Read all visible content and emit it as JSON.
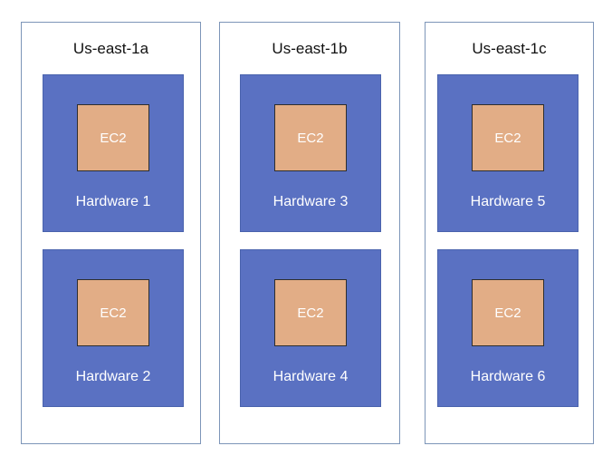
{
  "zones": [
    {
      "title": "Us-east-1a",
      "hardware": [
        {
          "label": "Hardware 1",
          "instance": "EC2"
        },
        {
          "label": "Hardware 2",
          "instance": "EC2"
        }
      ]
    },
    {
      "title": "Us-east-1b",
      "hardware": [
        {
          "label": "Hardware 3",
          "instance": "EC2"
        },
        {
          "label": "Hardware 4",
          "instance": "EC2"
        }
      ]
    },
    {
      "title": "Us-east-1c",
      "hardware": [
        {
          "label": "Hardware 5",
          "instance": "EC2"
        },
        {
          "label": "Hardware 6",
          "instance": "EC2"
        }
      ]
    }
  ],
  "colors": {
    "hardware_fill": "#5a71c2",
    "ec2_fill": "#e2ad86",
    "zone_border": "#7d95b8"
  }
}
